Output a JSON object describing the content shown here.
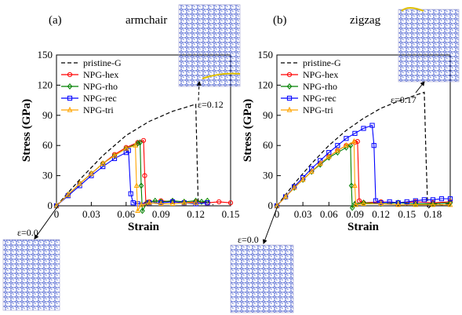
{
  "chart_data": [
    {
      "type": "line",
      "panel_label": "(a)",
      "title": "armchair",
      "xlabel": "Strain",
      "ylabel": "Stress (GPa)",
      "xlim": [
        0,
        0.15
      ],
      "ylim": [
        0,
        150
      ],
      "xticks": [
        "0",
        "0.03",
        "0.06",
        "0.09",
        "0.12",
        "0.15"
      ],
      "yticks": [
        "0",
        "30",
        "60",
        "90",
        "120",
        "150"
      ],
      "grid": false,
      "legend_position": "top-left",
      "series": [
        {
          "name": "pristine-G",
          "color": "#000000",
          "style": "dashed",
          "marker": "none",
          "points": [
            [
              0,
              0
            ],
            [
              0.02,
              26
            ],
            [
              0.04,
              50
            ],
            [
              0.06,
              70
            ],
            [
              0.08,
              84
            ],
            [
              0.1,
              94
            ],
            [
              0.12,
              101
            ],
            [
              0.121,
              52
            ],
            [
              0.122,
              5
            ],
            [
              0.126,
              3
            ],
            [
              0.13,
              5
            ],
            [
              0.135,
              1
            ]
          ]
        },
        {
          "name": "NPG-hex",
          "color": "#ff0000",
          "style": "solid",
          "marker": "circle",
          "points": [
            [
              0,
              0
            ],
            [
              0.01,
              11
            ],
            [
              0.02,
              22
            ],
            [
              0.03,
              32
            ],
            [
              0.04,
              42
            ],
            [
              0.05,
              51
            ],
            [
              0.06,
              58
            ],
            [
              0.07,
              63
            ],
            [
              0.075,
              65
            ],
            [
              0.076,
              30
            ],
            [
              0.077,
              2
            ],
            [
              0.08,
              4
            ],
            [
              0.09,
              5
            ],
            [
              0.1,
              4
            ],
            [
              0.11,
              3
            ],
            [
              0.12,
              4
            ],
            [
              0.13,
              3
            ],
            [
              0.14,
              4
            ],
            [
              0.15,
              3
            ]
          ]
        },
        {
          "name": "NPG-rho",
          "color": "#008000",
          "style": "solid",
          "marker": "diamond",
          "points": [
            [
              0,
              0
            ],
            [
              0.01,
              11
            ],
            [
              0.02,
              22
            ],
            [
              0.03,
              32
            ],
            [
              0.04,
              42
            ],
            [
              0.05,
              50
            ],
            [
              0.06,
              57
            ],
            [
              0.07,
              62
            ],
            [
              0.072,
              63
            ],
            [
              0.073,
              20
            ],
            [
              0.074,
              -5
            ],
            [
              0.078,
              3
            ],
            [
              0.085,
              5
            ],
            [
              0.09,
              4
            ],
            [
              0.1,
              5
            ],
            [
              0.11,
              4
            ],
            [
              0.12,
              5
            ],
            [
              0.125,
              4
            ],
            [
              0.13,
              5
            ]
          ]
        },
        {
          "name": "NPG-rec",
          "color": "#0000ff",
          "style": "solid",
          "marker": "square",
          "points": [
            [
              0,
              0
            ],
            [
              0.01,
              10
            ],
            [
              0.02,
              20
            ],
            [
              0.03,
              30
            ],
            [
              0.04,
              39
            ],
            [
              0.05,
              47
            ],
            [
              0.06,
              53
            ],
            [
              0.062,
              55
            ],
            [
              0.064,
              12
            ],
            [
              0.066,
              3
            ],
            [
              0.07,
              2
            ],
            [
              0.08,
              3
            ],
            [
              0.09,
              3
            ],
            [
              0.1,
              4
            ],
            [
              0.11,
              3
            ],
            [
              0.12,
              2
            ],
            [
              0.13,
              3
            ]
          ]
        },
        {
          "name": "NPG-tri",
          "color": "#ffa500",
          "style": "solid",
          "marker": "triangle",
          "points": [
            [
              0,
              0
            ],
            [
              0.01,
              11
            ],
            [
              0.02,
              22
            ],
            [
              0.03,
              32
            ],
            [
              0.04,
              42
            ],
            [
              0.05,
              50
            ],
            [
              0.06,
              57
            ],
            [
              0.068,
              60
            ],
            [
              0.069,
              20
            ],
            [
              0.07,
              -5
            ],
            [
              0.073,
              1
            ],
            [
              0.08,
              3
            ],
            [
              0.09,
              2
            ],
            [
              0.1,
              2
            ],
            [
              0.11,
              3
            ],
            [
              0.12,
              3
            ]
          ]
        }
      ],
      "annotations": [
        {
          "text": "ε=0.12",
          "points_to": [
            0.12,
            101
          ]
        },
        {
          "text": "ε=0.0",
          "points_to": [
            0,
            0
          ]
        }
      ]
    },
    {
      "type": "line",
      "panel_label": "(b)",
      "title": "zigzag",
      "xlabel": "Strain",
      "ylabel": "Stress (GPa)",
      "xlim": [
        0,
        0.2
      ],
      "ylim": [
        0,
        150
      ],
      "xticks": [
        "0",
        "0.03",
        "0.06",
        "0.09",
        "0.12",
        "0.15",
        "0.18"
      ],
      "yticks": [
        "0",
        "30",
        "60",
        "90",
        "120",
        "150"
      ],
      "grid": false,
      "legend_position": "top-left",
      "series": [
        {
          "name": "pristine-G",
          "color": "#000000",
          "style": "dashed",
          "marker": "none",
          "points": [
            [
              0,
              0
            ],
            [
              0.02,
              22
            ],
            [
              0.04,
              42
            ],
            [
              0.06,
              60
            ],
            [
              0.08,
              75
            ],
            [
              0.1,
              87
            ],
            [
              0.12,
              97
            ],
            [
              0.14,
              104
            ],
            [
              0.16,
              110
            ],
            [
              0.17,
              113
            ],
            [
              0.172,
              50
            ],
            [
              0.174,
              -3
            ],
            [
              0.18,
              2
            ],
            [
              0.19,
              1
            ],
            [
              0.2,
              2
            ]
          ]
        },
        {
          "name": "NPG-hex",
          "color": "#ff0000",
          "style": "solid",
          "marker": "circle",
          "points": [
            [
              0,
              0
            ],
            [
              0.01,
              9
            ],
            [
              0.02,
              18
            ],
            [
              0.03,
              26
            ],
            [
              0.04,
              34
            ],
            [
              0.05,
              42
            ],
            [
              0.06,
              49
            ],
            [
              0.07,
              55
            ],
            [
              0.08,
              60
            ],
            [
              0.09,
              63
            ],
            [
              0.093,
              64
            ],
            [
              0.095,
              5
            ],
            [
              0.1,
              3
            ],
            [
              0.12,
              4
            ],
            [
              0.14,
              3
            ],
            [
              0.16,
              4
            ],
            [
              0.18,
              3
            ],
            [
              0.2,
              4
            ]
          ]
        },
        {
          "name": "NPG-rho",
          "color": "#008000",
          "style": "solid",
          "marker": "diamond",
          "points": [
            [
              0,
              0
            ],
            [
              0.01,
              9
            ],
            [
              0.02,
              18
            ],
            [
              0.03,
              26
            ],
            [
              0.04,
              34
            ],
            [
              0.05,
              41
            ],
            [
              0.06,
              48
            ],
            [
              0.07,
              53
            ],
            [
              0.08,
              58
            ],
            [
              0.085,
              60
            ],
            [
              0.086,
              20
            ],
            [
              0.087,
              -2
            ],
            [
              0.09,
              2
            ],
            [
              0.1,
              3
            ],
            [
              0.12,
              2
            ],
            [
              0.14,
              3
            ],
            [
              0.16,
              2
            ],
            [
              0.18,
              2
            ],
            [
              0.2,
              3
            ]
          ]
        },
        {
          "name": "NPG-rec",
          "color": "#0000ff",
          "style": "solid",
          "marker": "square",
          "points": [
            [
              0,
              0
            ],
            [
              0.01,
              9
            ],
            [
              0.02,
              19
            ],
            [
              0.03,
              28
            ],
            [
              0.04,
              37
            ],
            [
              0.05,
              45
            ],
            [
              0.06,
              53
            ],
            [
              0.07,
              60
            ],
            [
              0.08,
              67
            ],
            [
              0.09,
              72
            ],
            [
              0.1,
              77
            ],
            [
              0.11,
              80
            ],
            [
              0.112,
              60
            ],
            [
              0.114,
              5
            ],
            [
              0.12,
              3
            ],
            [
              0.13,
              4
            ],
            [
              0.14,
              3
            ],
            [
              0.15,
              4
            ],
            [
              0.16,
              5
            ],
            [
              0.17,
              6
            ],
            [
              0.18,
              6
            ],
            [
              0.19,
              7
            ],
            [
              0.2,
              7
            ]
          ]
        },
        {
          "name": "NPG-tri",
          "color": "#ffa500",
          "style": "solid",
          "marker": "triangle",
          "points": [
            [
              0,
              0
            ],
            [
              0.01,
              9
            ],
            [
              0.02,
              18
            ],
            [
              0.03,
              26
            ],
            [
              0.04,
              34
            ],
            [
              0.05,
              42
            ],
            [
              0.06,
              49
            ],
            [
              0.07,
              55
            ],
            [
              0.08,
              60
            ],
            [
              0.089,
              64
            ],
            [
              0.09,
              20
            ],
            [
              0.091,
              1
            ],
            [
              0.1,
              2
            ],
            [
              0.12,
              2
            ],
            [
              0.14,
              1
            ],
            [
              0.16,
              1
            ],
            [
              0.18,
              1
            ],
            [
              0.2,
              1
            ]
          ]
        }
      ],
      "annotations": [
        {
          "text": "ε=0.17",
          "points_to": [
            0.17,
            113
          ]
        },
        {
          "text": "ε=0.0",
          "points_to": [
            0,
            0
          ]
        }
      ]
    }
  ]
}
